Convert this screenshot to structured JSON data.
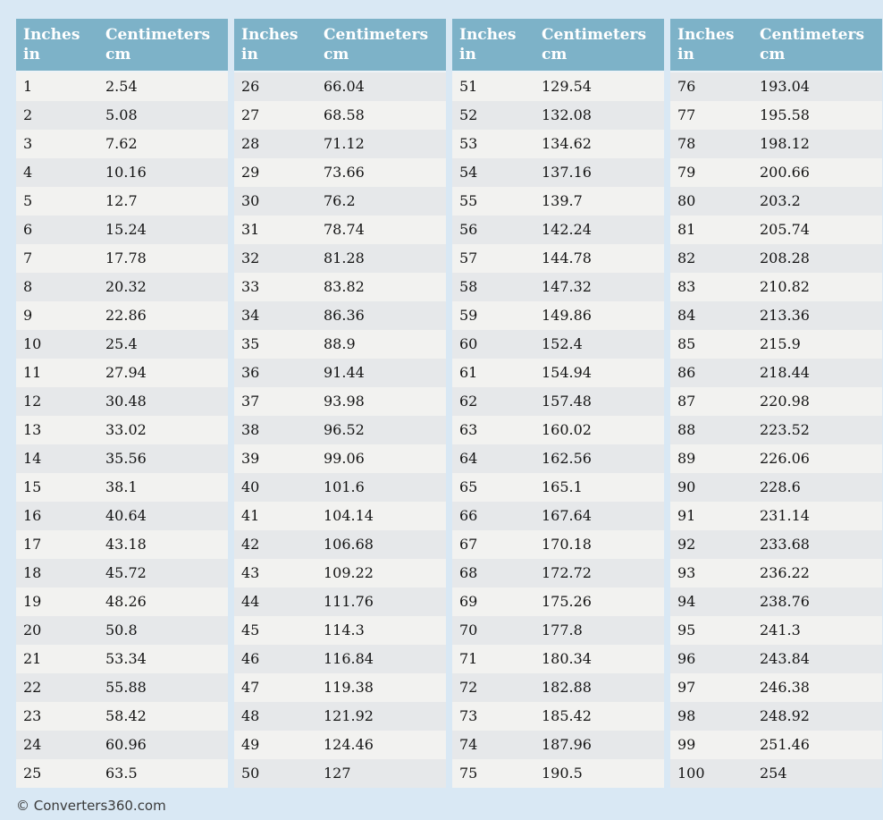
{
  "colors": {
    "page-bg": "#d9e8f4",
    "header-bg": "#7db2c8",
    "header-fg": "#ffffff",
    "row-odd": "#f2f2f0",
    "row-even": "#e6e8ea",
    "cell-fg": "#141414",
    "footer-fg": "#3a3a3a"
  },
  "footer": {
    "copyright": "© Converters360.com"
  },
  "table": {
    "header": {
      "inches_label": "Inches",
      "inches_unit": "in",
      "centimeters_label": "Centimeters",
      "centimeters_unit": "cm"
    },
    "columns": [
      {
        "rows": [
          [
            "1",
            "2.54"
          ],
          [
            "2",
            "5.08"
          ],
          [
            "3",
            "7.62"
          ],
          [
            "4",
            "10.16"
          ],
          [
            "5",
            "12.7"
          ],
          [
            "6",
            "15.24"
          ],
          [
            "7",
            "17.78"
          ],
          [
            "8",
            "20.32"
          ],
          [
            "9",
            "22.86"
          ],
          [
            "10",
            "25.4"
          ],
          [
            "11",
            "27.94"
          ],
          [
            "12",
            "30.48"
          ],
          [
            "13",
            "33.02"
          ],
          [
            "14",
            "35.56"
          ],
          [
            "15",
            "38.1"
          ],
          [
            "16",
            "40.64"
          ],
          [
            "17",
            "43.18"
          ],
          [
            "18",
            "45.72"
          ],
          [
            "19",
            "48.26"
          ],
          [
            "20",
            "50.8"
          ],
          [
            "21",
            "53.34"
          ],
          [
            "22",
            "55.88"
          ],
          [
            "23",
            "58.42"
          ],
          [
            "24",
            "60.96"
          ],
          [
            "25",
            "63.5"
          ]
        ]
      },
      {
        "rows": [
          [
            "26",
            "66.04"
          ],
          [
            "27",
            "68.58"
          ],
          [
            "28",
            "71.12"
          ],
          [
            "29",
            "73.66"
          ],
          [
            "30",
            "76.2"
          ],
          [
            "31",
            "78.74"
          ],
          [
            "32",
            "81.28"
          ],
          [
            "33",
            "83.82"
          ],
          [
            "34",
            "86.36"
          ],
          [
            "35",
            "88.9"
          ],
          [
            "36",
            "91.44"
          ],
          [
            "37",
            "93.98"
          ],
          [
            "38",
            "96.52"
          ],
          [
            "39",
            "99.06"
          ],
          [
            "40",
            "101.6"
          ],
          [
            "41",
            "104.14"
          ],
          [
            "42",
            "106.68"
          ],
          [
            "43",
            "109.22"
          ],
          [
            "44",
            "111.76"
          ],
          [
            "45",
            "114.3"
          ],
          [
            "46",
            "116.84"
          ],
          [
            "47",
            "119.38"
          ],
          [
            "48",
            "121.92"
          ],
          [
            "49",
            "124.46"
          ],
          [
            "50",
            "127"
          ]
        ]
      },
      {
        "rows": [
          [
            "51",
            "129.54"
          ],
          [
            "52",
            "132.08"
          ],
          [
            "53",
            "134.62"
          ],
          [
            "54",
            "137.16"
          ],
          [
            "55",
            "139.7"
          ],
          [
            "56",
            "142.24"
          ],
          [
            "57",
            "144.78"
          ],
          [
            "58",
            "147.32"
          ],
          [
            "59",
            "149.86"
          ],
          [
            "60",
            "152.4"
          ],
          [
            "61",
            "154.94"
          ],
          [
            "62",
            "157.48"
          ],
          [
            "63",
            "160.02"
          ],
          [
            "64",
            "162.56"
          ],
          [
            "65",
            "165.1"
          ],
          [
            "66",
            "167.64"
          ],
          [
            "67",
            "170.18"
          ],
          [
            "68",
            "172.72"
          ],
          [
            "69",
            "175.26"
          ],
          [
            "70",
            "177.8"
          ],
          [
            "71",
            "180.34"
          ],
          [
            "72",
            "182.88"
          ],
          [
            "73",
            "185.42"
          ],
          [
            "74",
            "187.96"
          ],
          [
            "75",
            "190.5"
          ]
        ]
      },
      {
        "rows": [
          [
            "76",
            "193.04"
          ],
          [
            "77",
            "195.58"
          ],
          [
            "78",
            "198.12"
          ],
          [
            "79",
            "200.66"
          ],
          [
            "80",
            "203.2"
          ],
          [
            "81",
            "205.74"
          ],
          [
            "82",
            "208.28"
          ],
          [
            "83",
            "210.82"
          ],
          [
            "84",
            "213.36"
          ],
          [
            "85",
            "215.9"
          ],
          [
            "86",
            "218.44"
          ],
          [
            "87",
            "220.98"
          ],
          [
            "88",
            "223.52"
          ],
          [
            "89",
            "226.06"
          ],
          [
            "90",
            "228.6"
          ],
          [
            "91",
            "231.14"
          ],
          [
            "92",
            "233.68"
          ],
          [
            "93",
            "236.22"
          ],
          [
            "94",
            "238.76"
          ],
          [
            "95",
            "241.3"
          ],
          [
            "96",
            "243.84"
          ],
          [
            "97",
            "246.38"
          ],
          [
            "98",
            "248.92"
          ],
          [
            "99",
            "251.46"
          ],
          [
            "100",
            "254"
          ]
        ]
      }
    ]
  }
}
